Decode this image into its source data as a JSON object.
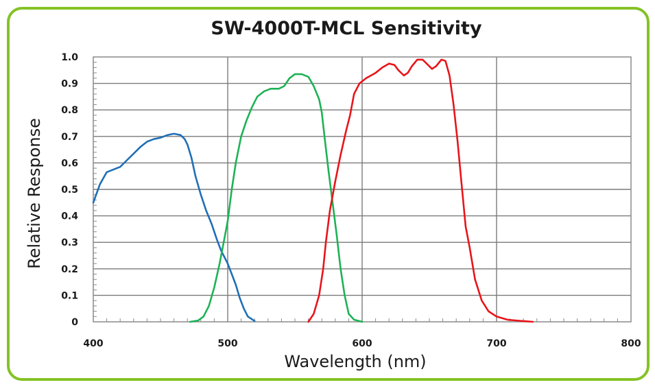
{
  "chart_data": {
    "type": "line",
    "title": "SW-4000T-MCL Sensitivity",
    "xlabel": "Wavelength (nm)",
    "ylabel": "Relative Response",
    "xlim": [
      400,
      800
    ],
    "ylim": [
      0,
      1.0
    ],
    "x_ticks": [
      400,
      500,
      600,
      700,
      800
    ],
    "x_tick_labels": [
      "400",
      "500",
      "600",
      "700",
      "800"
    ],
    "y_ticks": [
      0,
      0.1,
      0.2,
      0.3,
      0.4,
      0.5,
      0.6,
      0.7,
      0.8,
      0.9,
      1.0
    ],
    "y_tick_labels": [
      "0",
      "0.1",
      "0.2",
      "0.3",
      "0.4",
      "0.5",
      "0.6",
      "0.7",
      "0.8",
      "0.9",
      "1.0"
    ],
    "grid": true,
    "legend": "none",
    "series": [
      {
        "name": "Blue",
        "color": "#1f6fb6",
        "x": [
          400,
          405,
          410,
          415,
          420,
          425,
          430,
          435,
          440,
          445,
          450,
          455,
          460,
          465,
          468,
          470,
          473,
          476,
          480,
          484,
          488,
          492,
          495,
          500,
          503,
          506,
          509,
          512,
          515,
          520
        ],
        "y": [
          0.45,
          0.52,
          0.565,
          0.575,
          0.585,
          0.61,
          0.635,
          0.66,
          0.68,
          0.69,
          0.695,
          0.705,
          0.71,
          0.705,
          0.69,
          0.67,
          0.62,
          0.55,
          0.48,
          0.42,
          0.37,
          0.31,
          0.27,
          0.22,
          0.18,
          0.14,
          0.09,
          0.05,
          0.02,
          0.003
        ]
      },
      {
        "name": "Green",
        "color": "#1db255",
        "x": [
          472,
          478,
          482,
          486,
          490,
          494,
          497,
          500,
          503,
          506,
          510,
          514,
          518,
          522,
          527,
          532,
          538,
          542,
          546,
          550,
          555,
          560,
          564,
          568,
          570,
          572,
          575,
          578,
          581,
          584,
          587,
          590,
          594,
          600
        ],
        "y": [
          0,
          0.005,
          0.02,
          0.06,
          0.13,
          0.22,
          0.3,
          0.38,
          0.5,
          0.6,
          0.7,
          0.76,
          0.81,
          0.85,
          0.87,
          0.88,
          0.88,
          0.89,
          0.92,
          0.935,
          0.935,
          0.925,
          0.89,
          0.84,
          0.79,
          0.7,
          0.57,
          0.45,
          0.33,
          0.2,
          0.1,
          0.03,
          0.008,
          0
        ]
      },
      {
        "name": "Red",
        "color": "#e8141a",
        "x": [
          560,
          564,
          568,
          571,
          573,
          576,
          580,
          584,
          588,
          591,
          594,
          598,
          603,
          610,
          615,
          620,
          624,
          627,
          631,
          634,
          637,
          641,
          645,
          648,
          652,
          655,
          659,
          662,
          665,
          668,
          671,
          674,
          677,
          680,
          684,
          689,
          694,
          700,
          708,
          717,
          727
        ],
        "y": [
          0,
          0.03,
          0.1,
          0.2,
          0.3,
          0.42,
          0.53,
          0.63,
          0.72,
          0.78,
          0.86,
          0.9,
          0.92,
          0.94,
          0.96,
          0.975,
          0.97,
          0.95,
          0.93,
          0.94,
          0.965,
          0.99,
          0.99,
          0.975,
          0.955,
          0.965,
          0.99,
          0.985,
          0.93,
          0.82,
          0.68,
          0.52,
          0.36,
          0.28,
          0.16,
          0.08,
          0.04,
          0.02,
          0.008,
          0.004,
          0
        ]
      }
    ]
  }
}
